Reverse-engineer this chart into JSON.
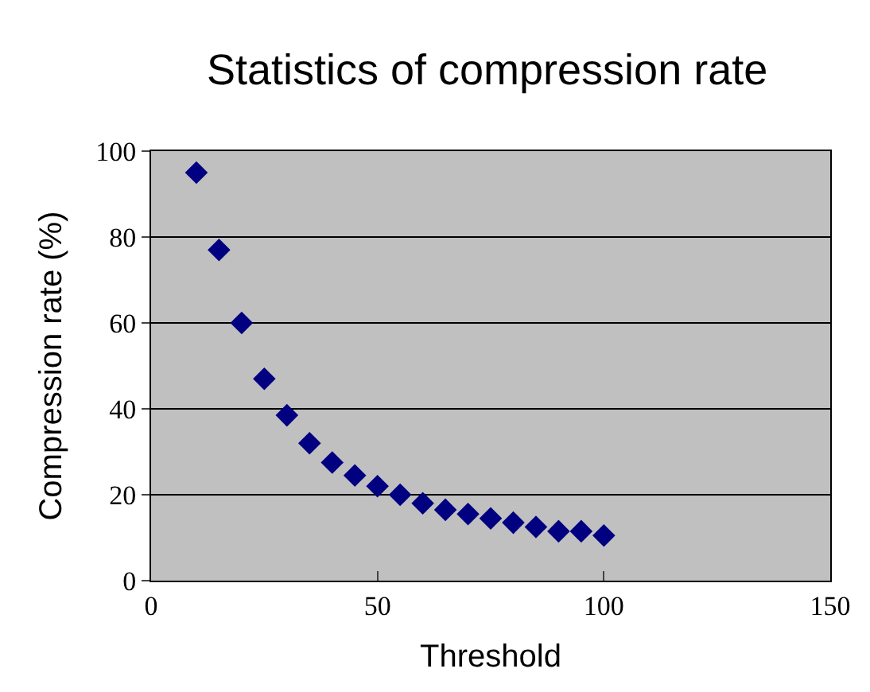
{
  "chart_data": {
    "type": "scatter",
    "title": "Statistics of compression rate",
    "xlabel": "Threshold",
    "ylabel": "Compression rate (%)",
    "x": [
      10,
      15,
      20,
      25,
      30,
      35,
      40,
      45,
      50,
      55,
      60,
      65,
      70,
      75,
      80,
      85,
      90,
      95,
      100
    ],
    "series": [
      {
        "color": "#000080",
        "values": [
          95,
          77,
          60,
          47,
          38.5,
          32,
          27.5,
          24.5,
          22,
          20,
          18,
          16.5,
          15.5,
          14.5,
          13.5,
          12.5,
          11.5,
          11.5,
          10.5
        ]
      }
    ],
    "xlim": [
      0,
      150
    ],
    "xticks": [
      0,
      50,
      100,
      150
    ],
    "ylim": [
      0,
      100
    ],
    "yticks": [
      0,
      20,
      40,
      60,
      80,
      100
    ],
    "grid": "y",
    "marker": "diamond"
  }
}
